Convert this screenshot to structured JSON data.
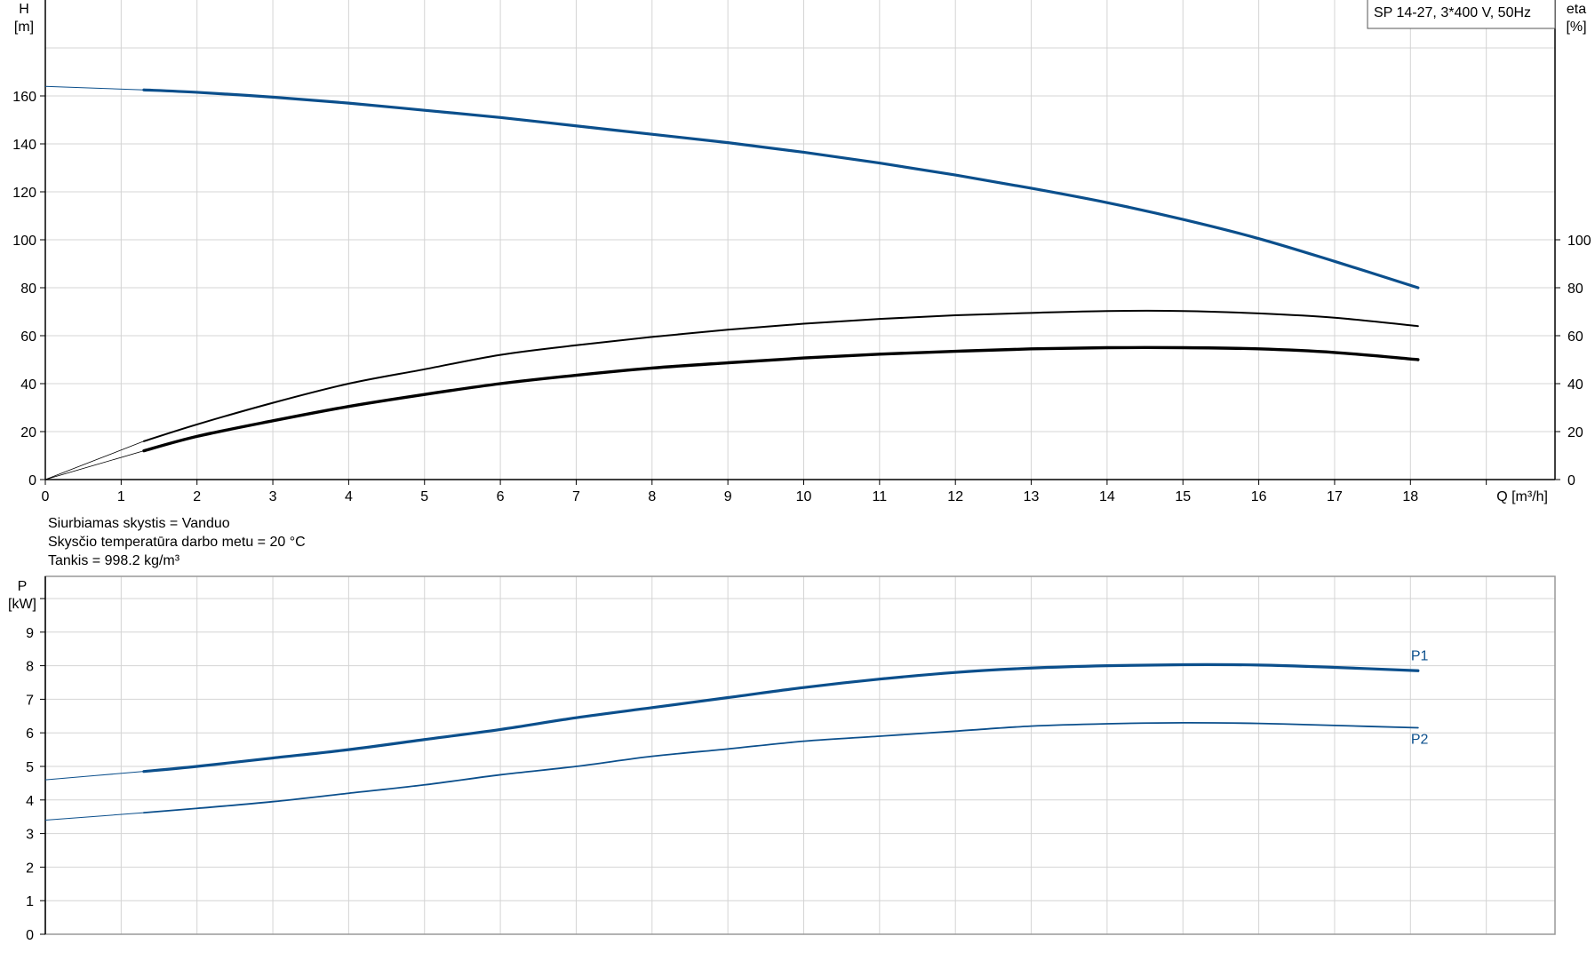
{
  "chart_data": [
    {
      "type": "line",
      "title": "SP 14-27, 3*400 V, 50Hz",
      "xlabel": "Q [m³/h]",
      "ylabel_left": [
        "H",
        "[m]"
      ],
      "ylabel_right": [
        "eta",
        "[%]"
      ],
      "xlim": [
        0,
        19.9
      ],
      "ylim_left": [
        0,
        200
      ],
      "ylim_right": [
        0,
        200
      ],
      "x_ticks": [
        0,
        1,
        2,
        3,
        4,
        5,
        6,
        7,
        8,
        9,
        10,
        11,
        12,
        13,
        14,
        15,
        16,
        17,
        18
      ],
      "y_ticks_left": [
        0,
        20,
        40,
        60,
        80,
        100,
        120,
        140,
        160
      ],
      "y_ticks_right": [
        0,
        20,
        40,
        60,
        80,
        100
      ],
      "grid": true,
      "colors": {
        "head": "#0b4f8c",
        "efficiency": "#000000"
      },
      "series": [
        {
          "axis": "left",
          "color": "#0b4f8c",
          "x": [
            0,
            1.3,
            2,
            3,
            4,
            5,
            6,
            7,
            8,
            9,
            10,
            11,
            12,
            13,
            14,
            15,
            16,
            17,
            18.1
          ],
          "y": [
            164,
            162.5,
            161.5,
            159.5,
            157,
            154,
            151,
            147.5,
            144,
            140.5,
            136.5,
            132,
            127,
            121.5,
            115.5,
            108.5,
            100.5,
            91,
            80
          ]
        },
        {
          "axis": "right",
          "color": "#000000",
          "x": [
            0,
            1.3,
            2,
            3,
            4,
            5,
            6,
            7,
            8,
            9,
            10,
            11,
            12,
            13,
            14,
            15,
            16,
            17,
            18.1
          ],
          "y": [
            0,
            16,
            23,
            32,
            40,
            46,
            52,
            56,
            59.5,
            62.5,
            65,
            67,
            68.5,
            69.5,
            70.3,
            70.3,
            69.3,
            67.5,
            64
          ]
        },
        {
          "axis": "right",
          "color": "#000000",
          "x": [
            0,
            1.3,
            2,
            3,
            4,
            5,
            6,
            7,
            8,
            9,
            10,
            11,
            12,
            13,
            14,
            15,
            16,
            17,
            18.1
          ],
          "y": [
            0,
            12,
            18,
            24.5,
            30.5,
            35.5,
            40,
            43.5,
            46.5,
            48.7,
            50.7,
            52.3,
            53.5,
            54.5,
            55,
            55,
            54.5,
            53,
            50
          ]
        }
      ]
    },
    {
      "type": "line",
      "ylabel": [
        "P",
        "[kW]"
      ],
      "xlim": [
        0,
        19.9
      ],
      "ylim": [
        0,
        10.6
      ],
      "y_ticks": [
        0,
        1,
        2,
        3,
        4,
        5,
        6,
        7,
        8,
        9
      ],
      "grid": true,
      "series": [
        {
          "name": "P1",
          "color": "#0b4f8c",
          "x": [
            0,
            1.3,
            2,
            3,
            4,
            5,
            6,
            7,
            8,
            9,
            10,
            11,
            12,
            13,
            14,
            15,
            16,
            17,
            18.1
          ],
          "y": [
            4.6,
            4.85,
            5.0,
            5.25,
            5.5,
            5.8,
            6.1,
            6.45,
            6.75,
            7.05,
            7.35,
            7.6,
            7.8,
            7.93,
            8.0,
            8.03,
            8.02,
            7.95,
            7.85
          ]
        },
        {
          "name": "P2",
          "color": "#0b4f8c",
          "x": [
            0,
            1.3,
            2,
            3,
            4,
            5,
            6,
            7,
            8,
            9,
            10,
            11,
            12,
            13,
            14,
            15,
            16,
            17,
            18.1
          ],
          "y": [
            3.4,
            3.62,
            3.75,
            3.95,
            4.2,
            4.45,
            4.75,
            5.0,
            5.3,
            5.52,
            5.75,
            5.9,
            6.05,
            6.2,
            6.27,
            6.3,
            6.28,
            6.22,
            6.15
          ]
        }
      ]
    }
  ],
  "info": {
    "liquid": "Siurbiamas skystis = Vanduo",
    "temperature": "Skysčio temperatūra darbo metu = 20 °C",
    "density": "Tankis = 998.2 kg/m³"
  }
}
